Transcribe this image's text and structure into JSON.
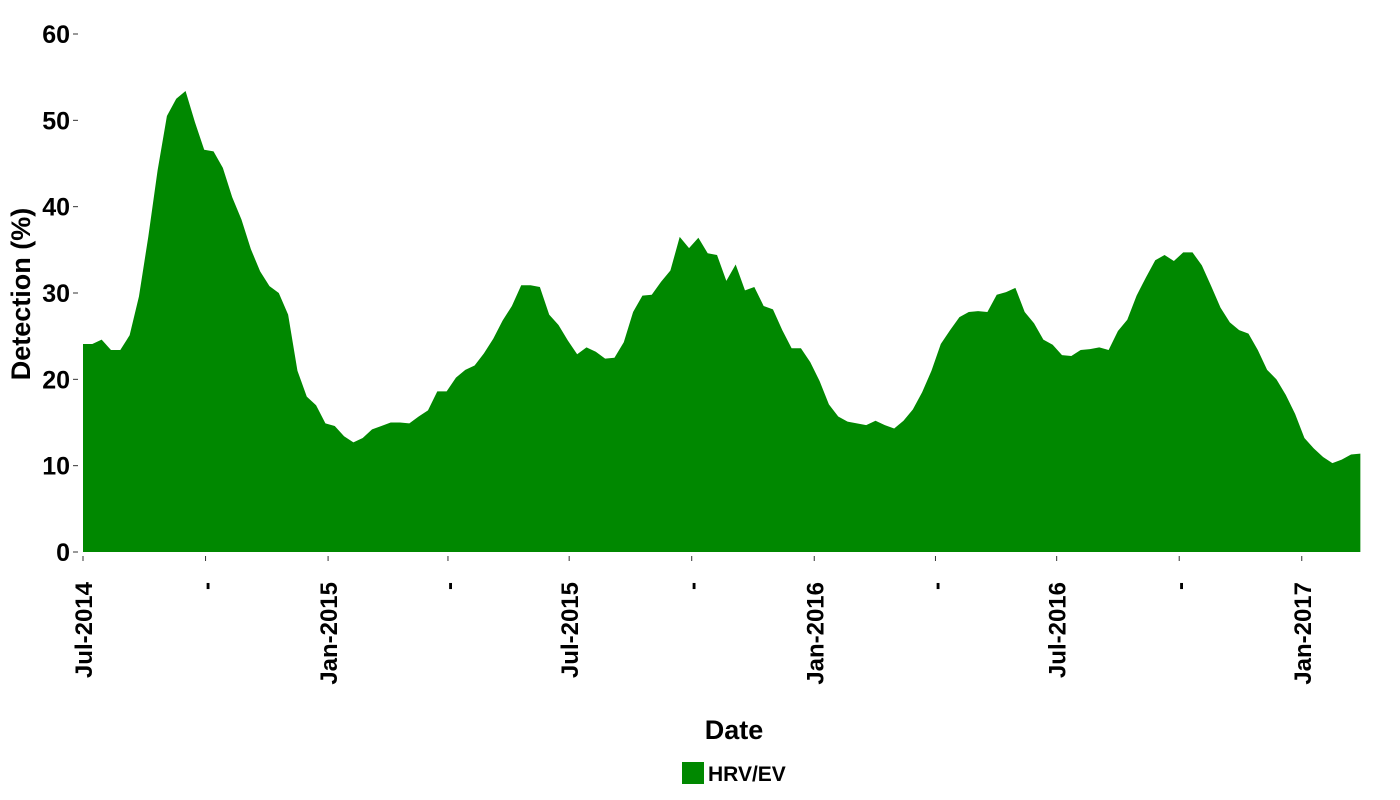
{
  "chart_data": {
    "type": "area",
    "title": "",
    "xlabel": "Date",
    "ylabel": "Detection (%)",
    "ylim": [
      0,
      60
    ],
    "xlim": [
      "2014-07-01",
      "2017-03-06"
    ],
    "y_ticks": [
      0,
      10,
      20,
      30,
      40,
      50,
      60
    ],
    "x_ticks": [
      {
        "date": "2014-07-01",
        "label": "Jul-2014"
      },
      {
        "date": "2014-10-01",
        "label": "-"
      },
      {
        "date": "2015-01-01",
        "label": "Jan-2015"
      },
      {
        "date": "2015-04-01",
        "label": "-"
      },
      {
        "date": "2015-07-01",
        "label": "Jul-2015"
      },
      {
        "date": "2015-10-01",
        "label": "-"
      },
      {
        "date": "2016-01-01",
        "label": "Jan-2016"
      },
      {
        "date": "2016-04-01",
        "label": "-"
      },
      {
        "date": "2016-07-01",
        "label": "Jul-2016"
      },
      {
        "date": "2016-10-01",
        "label": "-"
      },
      {
        "date": "2017-01-01",
        "label": "Jan-2017"
      }
    ],
    "grid": false,
    "legend_position": "bottom",
    "series": [
      {
        "name": "HRV/EV",
        "color": "#008800",
        "x": [
          "2014-07-01",
          "2014-07-08",
          "2014-07-15",
          "2014-07-22",
          "2014-07-29",
          "2014-08-05",
          "2014-08-12",
          "2014-08-19",
          "2014-08-26",
          "2014-09-02",
          "2014-09-09",
          "2014-09-16",
          "2014-09-23",
          "2014-09-30",
          "2014-10-07",
          "2014-10-14",
          "2014-10-21",
          "2014-10-28",
          "2014-11-04",
          "2014-11-11",
          "2014-11-18",
          "2014-11-25",
          "2014-12-02",
          "2014-12-09",
          "2014-12-16",
          "2014-12-23",
          "2014-12-30",
          "2015-01-06",
          "2015-01-13",
          "2015-01-20",
          "2015-01-27",
          "2015-02-03",
          "2015-02-10",
          "2015-02-17",
          "2015-02-24",
          "2015-03-03",
          "2015-03-10",
          "2015-03-17",
          "2015-03-24",
          "2015-03-31",
          "2015-04-07",
          "2015-04-14",
          "2015-04-21",
          "2015-04-28",
          "2015-05-05",
          "2015-05-12",
          "2015-05-19",
          "2015-05-26",
          "2015-06-02",
          "2015-06-09",
          "2015-06-16",
          "2015-06-23",
          "2015-06-30",
          "2015-07-07",
          "2015-07-14",
          "2015-07-21",
          "2015-07-28",
          "2015-08-04",
          "2015-08-11",
          "2015-08-18",
          "2015-08-25",
          "2015-09-01",
          "2015-09-08",
          "2015-09-15",
          "2015-09-22",
          "2015-09-29",
          "2015-10-06",
          "2015-10-13",
          "2015-10-20",
          "2015-10-27",
          "2015-11-03",
          "2015-11-10",
          "2015-11-17",
          "2015-11-24",
          "2015-12-01",
          "2015-12-08",
          "2015-12-15",
          "2015-12-22",
          "2015-12-29",
          "2016-01-05",
          "2016-01-12",
          "2016-01-19",
          "2016-01-26",
          "2016-02-02",
          "2016-02-09",
          "2016-02-16",
          "2016-02-23",
          "2016-03-01",
          "2016-03-08",
          "2016-03-15",
          "2016-03-22",
          "2016-03-29",
          "2016-04-05",
          "2016-04-12",
          "2016-04-19",
          "2016-04-26",
          "2016-05-03",
          "2016-05-10",
          "2016-05-17",
          "2016-05-24",
          "2016-05-31",
          "2016-06-07",
          "2016-06-14",
          "2016-06-21",
          "2016-06-28",
          "2016-07-05",
          "2016-07-12",
          "2016-07-19",
          "2016-07-26",
          "2016-08-02",
          "2016-08-09",
          "2016-08-16",
          "2016-08-23",
          "2016-08-30",
          "2016-09-06",
          "2016-09-13",
          "2016-09-20",
          "2016-09-27",
          "2016-10-04",
          "2016-10-11",
          "2016-10-18",
          "2016-10-25",
          "2016-11-01",
          "2016-11-08",
          "2016-11-15",
          "2016-11-22",
          "2016-11-29",
          "2016-12-06",
          "2016-12-13",
          "2016-12-20",
          "2016-12-27",
          "2017-01-03",
          "2017-01-10",
          "2017-01-17",
          "2017-01-24",
          "2017-01-31",
          "2017-02-07",
          "2017-02-14"
        ],
        "values": [
          24.1,
          24.1,
          24.6,
          23.4,
          23.4,
          25.1,
          29.6,
          36.5,
          44.2,
          50.5,
          52.5,
          53.4,
          49.8,
          46.6,
          46.4,
          44.5,
          41.1,
          38.5,
          35.1,
          32.5,
          30.8,
          30.0,
          27.5,
          21.0,
          18.0,
          17.0,
          14.9,
          14.6,
          13.4,
          12.7,
          13.2,
          14.2,
          14.6,
          15.0,
          15.0,
          14.9,
          15.7,
          16.4,
          18.6,
          18.6,
          20.2,
          21.1,
          21.6,
          23.0,
          24.7,
          26.8,
          28.5,
          30.9,
          30.9,
          30.7,
          27.5,
          26.3,
          24.5,
          22.9,
          23.7,
          23.2,
          22.4,
          22.5,
          24.3,
          27.8,
          29.7,
          29.8,
          31.3,
          32.6,
          36.5,
          35.2,
          36.4,
          34.6,
          34.4,
          31.4,
          33.3,
          30.3,
          30.7,
          28.5,
          28.1,
          25.7,
          23.6,
          23.6,
          22.0,
          19.8,
          17.1,
          15.7,
          15.1,
          14.9,
          14.7,
          15.2,
          14.7,
          14.3,
          15.2,
          16.5,
          18.5,
          21.0,
          24.1,
          25.7,
          27.2,
          27.8,
          27.9,
          27.8,
          29.8,
          30.1,
          30.6,
          27.8,
          26.5,
          24.6,
          24.0,
          22.8,
          22.7,
          23.4,
          23.5,
          23.7,
          23.4,
          25.6,
          26.9,
          29.7,
          31.8,
          33.8,
          34.4,
          33.7,
          34.7,
          34.7,
          33.2,
          30.8,
          28.3,
          26.6,
          25.7,
          25.3,
          23.4,
          21.1,
          20.0,
          18.2,
          16.0,
          13.2,
          12.0,
          11.0,
          10.3,
          10.7,
          11.3,
          11.4
        ]
      }
    ]
  }
}
